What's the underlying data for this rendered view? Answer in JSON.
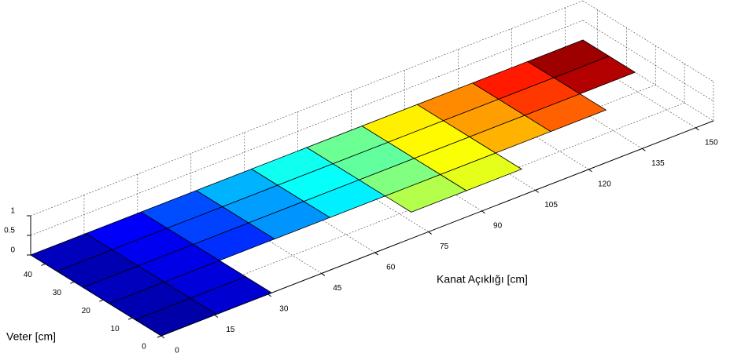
{
  "chart_data": {
    "type": "surface3d",
    "xlabel": "Kanat Açıklığı [cm]",
    "ylabel": "Veter [cm]",
    "xlim": [
      0,
      155
    ],
    "ylim": [
      0,
      45
    ],
    "zlim": [
      0,
      1
    ],
    "xticks": [
      0,
      15,
      30,
      45,
      60,
      75,
      90,
      105,
      120,
      135,
      150
    ],
    "yticks": [
      0,
      10,
      20,
      30,
      40
    ],
    "zticks": [
      0,
      0.5,
      1
    ],
    "grid": true,
    "colormap": "jet",
    "x_edges": [
      0,
      15.5,
      31,
      46.5,
      62,
      77.5,
      93,
      108.5,
      124,
      139.5,
      155
    ],
    "y_edges": [
      0,
      9,
      18,
      27,
      36,
      45
    ],
    "values": [
      [
        0.04,
        0.08,
        null,
        null,
        null,
        null,
        null,
        null,
        null,
        null
      ],
      [
        0.05,
        0.09,
        null,
        null,
        null,
        0.55,
        0.6,
        null,
        null,
        null
      ],
      [
        0.06,
        0.1,
        0.17,
        0.27,
        0.36,
        0.5,
        0.62,
        0.7,
        0.78,
        null
      ],
      [
        0.05,
        0.11,
        0.19,
        0.28,
        0.38,
        0.47,
        0.63,
        0.72,
        0.82,
        0.95
      ],
      [
        0.06,
        0.12,
        0.2,
        0.3,
        0.39,
        0.48,
        0.64,
        0.74,
        0.85,
        0.97
      ]
    ]
  }
}
